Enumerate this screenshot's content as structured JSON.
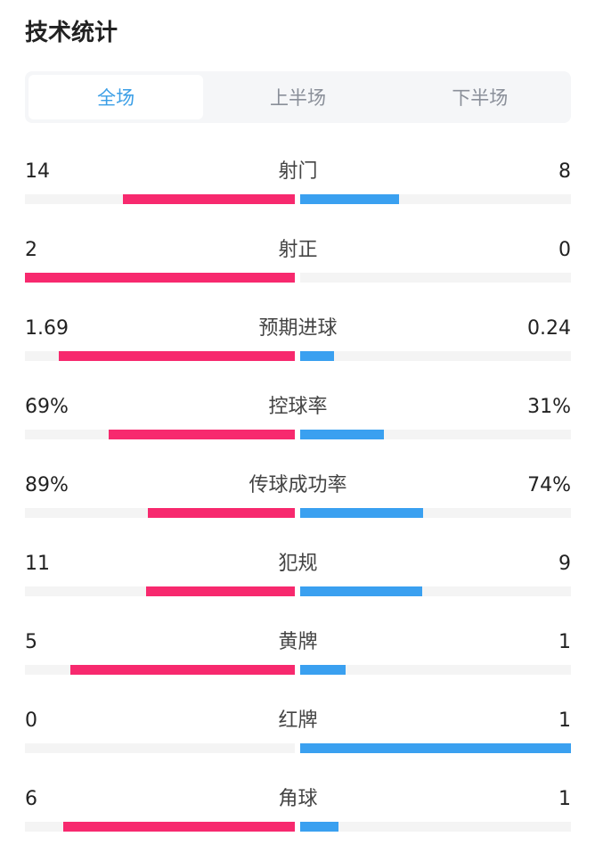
{
  "title": "技术统计",
  "tabs": [
    {
      "label": "全场",
      "active": true
    },
    {
      "label": "上半场",
      "active": false
    },
    {
      "label": "下半场",
      "active": false
    }
  ],
  "colors": {
    "home": "#f7296e",
    "away": "#3aa0f0",
    "track": "#f4f4f4",
    "active_tab": "#3a9ee6"
  },
  "stats": [
    {
      "label": "射门",
      "home": "14",
      "away": "8",
      "home_share": 0.636,
      "away_share": 0.364
    },
    {
      "label": "射正",
      "home": "2",
      "away": "0",
      "home_share": 1,
      "away_share": 0
    },
    {
      "label": "预期进球",
      "home": "1.69",
      "away": "0.24",
      "home_share": 0.876,
      "away_share": 0.124
    },
    {
      "label": "控球率",
      "home": "69%",
      "away": "31%",
      "home_share": 0.69,
      "away_share": 0.31
    },
    {
      "label": "传球成功率",
      "home": "89%",
      "away": "74%",
      "home_share": 0.546,
      "away_share": 0.454
    },
    {
      "label": "犯规",
      "home": "11",
      "away": "9",
      "home_share": 0.55,
      "away_share": 0.45
    },
    {
      "label": "黄牌",
      "home": "5",
      "away": "1",
      "home_share": 0.833,
      "away_share": 0.167
    },
    {
      "label": "红牌",
      "home": "0",
      "away": "1",
      "home_share": 0,
      "away_share": 1
    },
    {
      "label": "角球",
      "home": "6",
      "away": "1",
      "home_share": 0.857,
      "away_share": 0.143
    }
  ]
}
